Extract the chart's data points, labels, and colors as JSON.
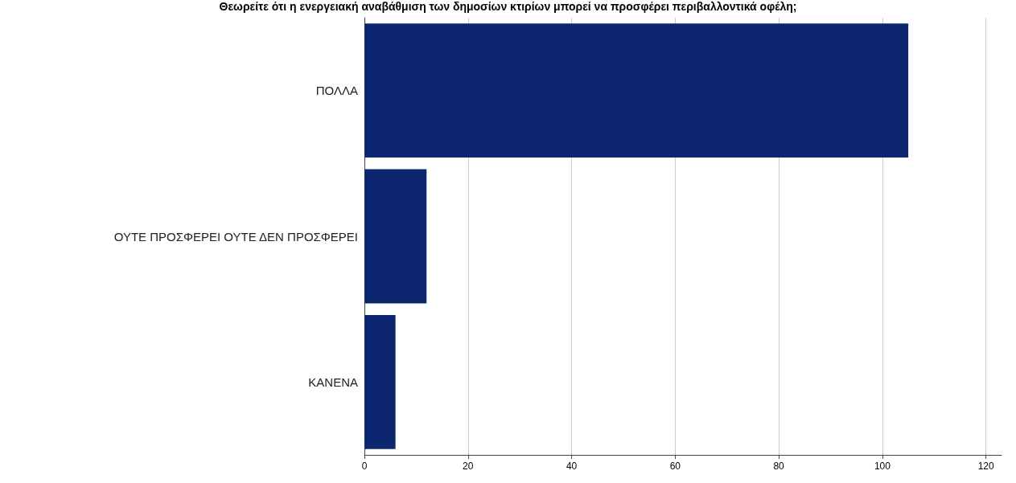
{
  "chart_data": {
    "type": "bar",
    "orientation": "horizontal",
    "title": "Θεωρείτε ότι η ενεργειακή αναβάθμιση των δημοσίων κτιρίων μπορεί να προσφέρει περιβαλλοντικά οφέλη;",
    "categories": [
      "ΠΟΛΛΑ",
      "ΟΥΤΕ ΠΡΟΣΦΕΡΕΙ ΟΥΤΕ ΔΕΝ ΠΡΟΣΦΕΡΕΙ",
      "ΚΑΝΕΝΑ"
    ],
    "values": [
      105,
      12,
      6
    ],
    "color": "#0c2670",
    "xlim": [
      0,
      123
    ],
    "xticks": [
      0,
      20,
      40,
      60,
      80,
      100,
      120
    ],
    "grid": "x"
  }
}
